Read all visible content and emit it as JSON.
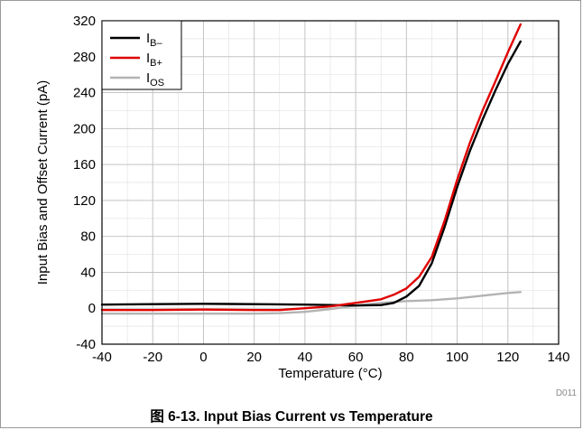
{
  "chart_data": {
    "type": "line",
    "xlabel": "Temperature (°C)",
    "ylabel": "Input Bias and Offset Current (pA)",
    "xlim": [
      -40,
      140
    ],
    "ylim": [
      -40,
      320
    ],
    "x_ticks": [
      "-40",
      "-20",
      "0",
      "20",
      "40",
      "60",
      "80",
      "100",
      "120",
      "140"
    ],
    "y_ticks": [
      "-40",
      "0",
      "40",
      "80",
      "120",
      "160",
      "200",
      "240",
      "280",
      "320"
    ],
    "x_tick_values": [
      -40,
      -20,
      0,
      20,
      40,
      60,
      80,
      100,
      120,
      140
    ],
    "y_tick_values": [
      -40,
      0,
      40,
      80,
      120,
      160,
      200,
      240,
      280,
      320
    ],
    "grid": true,
    "minor_grid": true,
    "legend_position": "top-left",
    "series": [
      {
        "name": "IB–",
        "name_main": "I",
        "name_sub": "B–",
        "color": "#000000",
        "x": [
          -40,
          -20,
          0,
          20,
          40,
          60,
          70,
          75,
          80,
          85,
          90,
          95,
          100,
          105,
          110,
          115,
          120,
          125
        ],
        "y": [
          4,
          4.5,
          5,
          4.5,
          4,
          3,
          3.5,
          6,
          13,
          25,
          50,
          90,
          135,
          175,
          210,
          242,
          272,
          297
        ]
      },
      {
        "name": "IB+",
        "name_main": "I",
        "name_sub": "B+",
        "color": "#e00000",
        "x": [
          -40,
          -20,
          0,
          20,
          30,
          40,
          50,
          60,
          65,
          70,
          75,
          80,
          85,
          90,
          95,
          100,
          105,
          110,
          115,
          120,
          125
        ],
        "y": [
          -2,
          -2,
          -1.5,
          -2,
          -2,
          0,
          2,
          6,
          8,
          10,
          15,
          22,
          35,
          57,
          97,
          143,
          184,
          220,
          252,
          285,
          316
        ]
      },
      {
        "name": "IOS",
        "name_main": "I",
        "name_sub": "OS",
        "color": "#b3b3b3",
        "x": [
          -40,
          -20,
          0,
          20,
          30,
          40,
          50,
          60,
          70,
          80,
          90,
          100,
          110,
          120,
          125
        ],
        "y": [
          -6,
          -6,
          -6,
          -6,
          -5.5,
          -4,
          -1,
          3,
          6,
          8,
          9,
          11,
          14,
          17,
          18
        ]
      }
    ]
  },
  "code_label": "D011",
  "caption": "图 6-13. Input Bias Current vs Temperature"
}
